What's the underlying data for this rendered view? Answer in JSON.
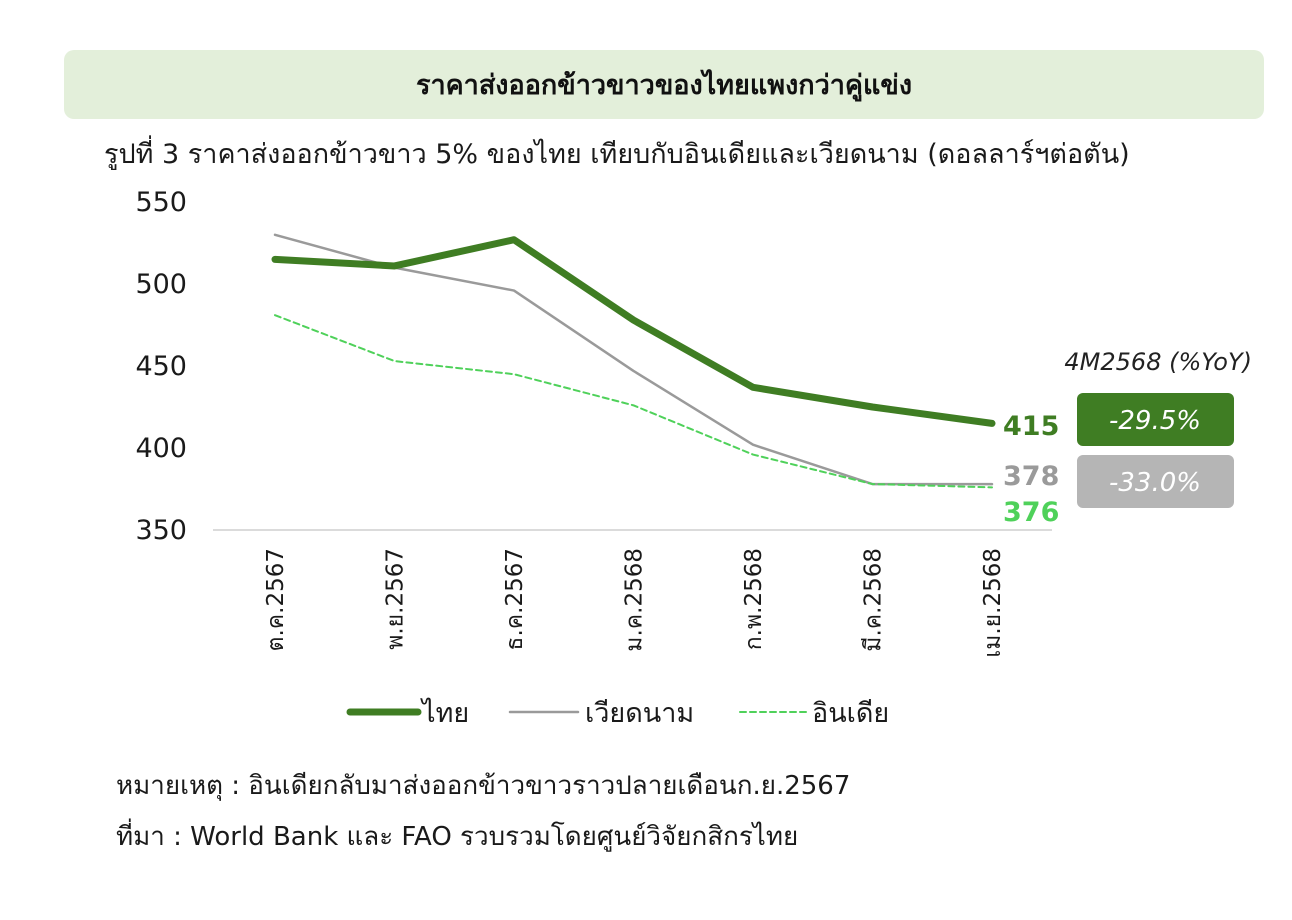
{
  "banner": {
    "title": "ราคาส่งออกข้าวขาวของไทยแพงกว่าคู่แข่ง"
  },
  "colors": {
    "thai": "#3f7d23",
    "vietnam": "#9a9a9a",
    "india": "#4fd15a",
    "banner_bg": "#e3efda"
  },
  "chart_data": {
    "type": "line",
    "title": "รูปที่ 3 ราคาส่งออกข้าวขาว 5% ของไทย เทียบกับอินเดียและเวียดนาม (ดอลลาร์ฯต่อตัน)",
    "categories": [
      "ต.ค.2567",
      "พ.ย.2567",
      "ธ.ค.2567",
      "ม.ค.2568",
      "ก.พ.2568",
      "มี.ค.2568",
      "เม.ย.2568"
    ],
    "ylim": [
      350,
      550
    ],
    "yticks": [
      "550",
      "500",
      "450",
      "400",
      "350"
    ],
    "grid": false,
    "legend_position": "bottom",
    "series": [
      {
        "name": "ไทย",
        "values": [
          515,
          511,
          527,
          478,
          437,
          425,
          415
        ],
        "end_label": "415",
        "style": "thick"
      },
      {
        "name": "เวียดนาม",
        "values": [
          530,
          510,
          496,
          447,
          402,
          378,
          378
        ],
        "end_label": "378",
        "style": "thin"
      },
      {
        "name": "อินเดีย",
        "values": [
          481,
          453,
          445,
          426,
          396,
          378,
          376
        ],
        "end_label": "376",
        "style": "dashed"
      }
    ],
    "yoy": {
      "title": "4M2568 (%YoY)",
      "thai": "-29.5%",
      "vietnam": "-33.0%"
    }
  },
  "notes": {
    "remark": "หมายเหตุ : อินเดียกลับมาส่งออกข้าวขาวราวปลายเดือนก.ย.2567",
    "source": "ที่มา : World Bank และ FAO รวบรวมโดยศูนย์วิจัยกสิกรไทย"
  }
}
